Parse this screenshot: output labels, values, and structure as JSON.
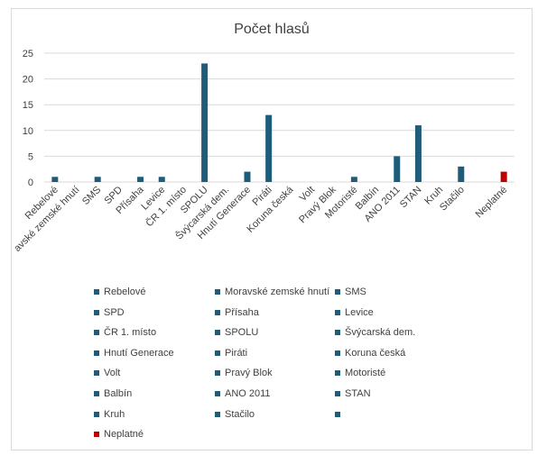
{
  "chart_data": {
    "type": "bar",
    "title": "Počet hlasů",
    "xlabel": "",
    "ylabel": "",
    "ylim": [
      0,
      25
    ],
    "yticks": [
      0,
      5,
      10,
      15,
      20,
      25
    ],
    "grid": true,
    "legend_position": "bottom",
    "categories": [
      "Rebelové",
      "Moravské zemské hnutí",
      "SMS",
      "SPD",
      "Přísaha",
      "Levice",
      "ČR 1. místo",
      "SPOLU",
      "Švýcarská dem.",
      "Hnutí Generace",
      "Piráti",
      "Koruna česká",
      "Volt",
      "Pravý Blok",
      "Motoristé",
      "Balbín",
      "ANO 2011",
      "STAN",
      "Kruh",
      "Stačilo",
      "",
      "Neplatné"
    ],
    "values": [
      1,
      0,
      1,
      0,
      1,
      1,
      0,
      23,
      0,
      2,
      13,
      0,
      0,
      0,
      1,
      0,
      5,
      11,
      0,
      3,
      0,
      2
    ],
    "colors": [
      "#1f5c7a",
      "#1f5c7a",
      "#1f5c7a",
      "#1f5c7a",
      "#1f5c7a",
      "#1f5c7a",
      "#1f5c7a",
      "#1f5c7a",
      "#1f5c7a",
      "#1f5c7a",
      "#1f5c7a",
      "#1f5c7a",
      "#1f5c7a",
      "#1f5c7a",
      "#1f5c7a",
      "#1f5c7a",
      "#1f5c7a",
      "#1f5c7a",
      "#1f5c7a",
      "#1f5c7a",
      "#1f5c7a",
      "#c00000"
    ],
    "x_tick_labels": [
      "Rebelové",
      "avské zemské hnutí",
      "SMS",
      "SPD",
      "Přísaha",
      "Levice",
      "ČR 1. místo",
      "SPOLU",
      "Švýcarská dem.",
      "Hnutí Generace",
      "Piráti",
      "Koruna česká",
      "Volt",
      "Pravý Blok",
      "Motoristé",
      "Balbín",
      "ANO 2011",
      "STAN",
      "Kruh",
      "Stačilo",
      "",
      "Neplatné"
    ]
  },
  "colors": {
    "series": "#1f5c7a",
    "invalid": "#c00000",
    "grid": "#d9d9d9",
    "text": "#404040",
    "title": "#404040"
  }
}
